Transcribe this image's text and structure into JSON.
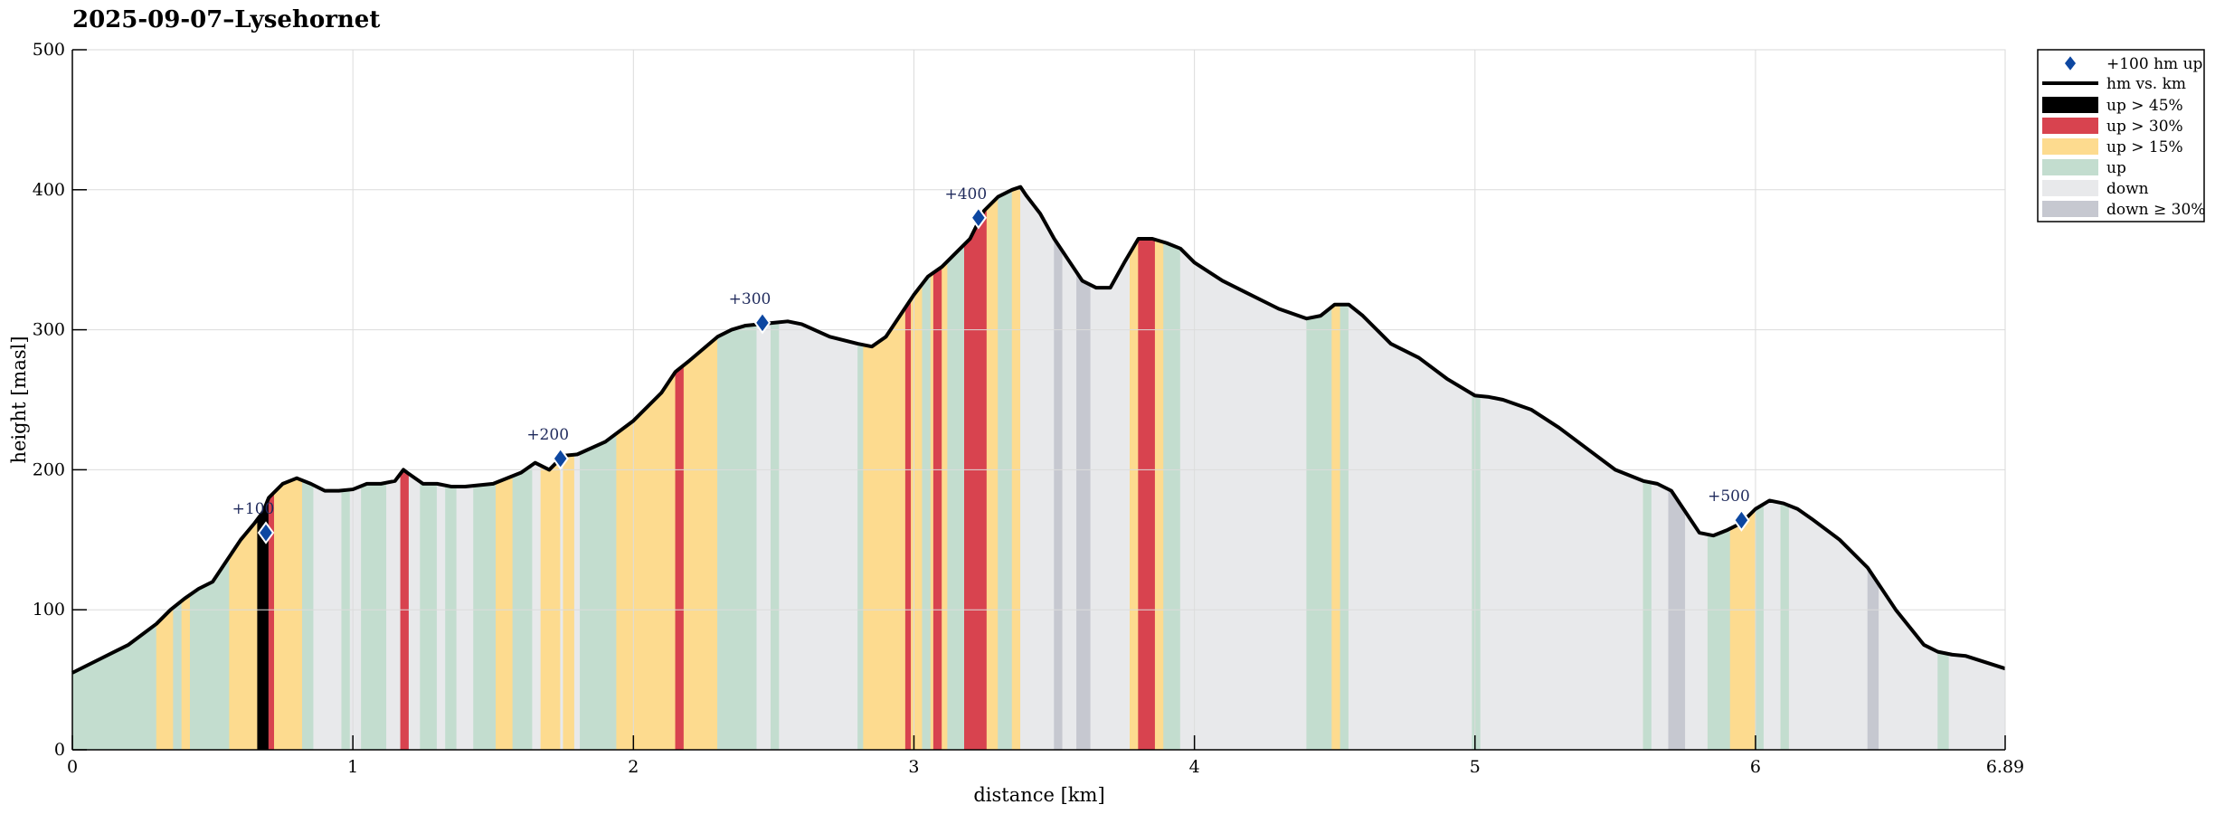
{
  "chart_data": {
    "type": "area",
    "title": "2025-09-07–Lysehornet",
    "xlabel": "distance [km]",
    "ylabel": "height [masl]",
    "xlim": [
      0,
      6.89
    ],
    "ylim": [
      0,
      500
    ],
    "xticks": [
      0,
      1,
      2,
      3,
      4,
      5,
      6,
      6.89
    ],
    "xtick_labels": [
      "0",
      "1",
      "2",
      "3",
      "4",
      "5",
      "6",
      "6.89"
    ],
    "yticks": [
      0,
      100,
      200,
      300,
      400,
      500
    ],
    "ytick_labels": [
      "0",
      "100",
      "200",
      "300",
      "400",
      "500"
    ],
    "grid": true,
    "legend_position": "outside-top-right",
    "series": [
      {
        "name": "hm vs. km",
        "x": [
          0,
          0.1,
          0.2,
          0.3,
          0.35,
          0.4,
          0.45,
          0.5,
          0.55,
          0.6,
          0.65,
          0.68,
          0.7,
          0.75,
          0.8,
          0.85,
          0.9,
          0.95,
          1.0,
          1.05,
          1.1,
          1.15,
          1.18,
          1.2,
          1.25,
          1.3,
          1.35,
          1.4,
          1.5,
          1.6,
          1.65,
          1.7,
          1.75,
          1.8,
          1.9,
          2.0,
          2.1,
          2.15,
          2.2,
          2.3,
          2.35,
          2.4,
          2.5,
          2.55,
          2.6,
          2.7,
          2.8,
          2.85,
          2.9,
          3.0,
          3.05,
          3.1,
          3.15,
          3.2,
          3.25,
          3.3,
          3.35,
          3.38,
          3.4,
          3.45,
          3.5,
          3.55,
          3.6,
          3.65,
          3.7,
          3.75,
          3.8,
          3.85,
          3.9,
          3.95,
          4.0,
          4.1,
          4.2,
          4.3,
          4.4,
          4.45,
          4.5,
          4.55,
          4.6,
          4.7,
          4.8,
          4.9,
          5.0,
          5.05,
          5.1,
          5.2,
          5.3,
          5.4,
          5.5,
          5.6,
          5.65,
          5.7,
          5.75,
          5.8,
          5.85,
          5.9,
          5.95,
          6.0,
          6.05,
          6.1,
          6.15,
          6.2,
          6.3,
          6.4,
          6.5,
          6.6,
          6.65,
          6.7,
          6.75,
          6.89
        ],
        "y": [
          55,
          65,
          75,
          90,
          100,
          108,
          115,
          120,
          135,
          150,
          162,
          170,
          180,
          190,
          194,
          190,
          185,
          185,
          186,
          190,
          190,
          192,
          200,
          197,
          190,
          190,
          188,
          188,
          190,
          198,
          205,
          200,
          210,
          211,
          220,
          235,
          255,
          270,
          278,
          295,
          300,
          303,
          305,
          306,
          304,
          295,
          290,
          288,
          295,
          325,
          338,
          345,
          355,
          365,
          385,
          395,
          400,
          402,
          396,
          383,
          365,
          350,
          335,
          330,
          330,
          348,
          365,
          365,
          362,
          358,
          348,
          335,
          325,
          315,
          308,
          310,
          318,
          318,
          310,
          290,
          280,
          265,
          253,
          252,
          250,
          243,
          230,
          215,
          200,
          192,
          190,
          185,
          170,
          155,
          153,
          157,
          162,
          172,
          178,
          176,
          172,
          165,
          150,
          130,
          100,
          75,
          70,
          68,
          67,
          58
        ]
      },
      {
        "name": "+100 hm up",
        "x": [
          0.69,
          1.74,
          2.46,
          3.23,
          5.95
        ],
        "y": [
          155,
          208,
          305,
          380,
          164
        ],
        "labels": [
          "+100",
          "+200",
          "+300",
          "+400",
          "+500"
        ]
      }
    ],
    "gradient_classes": [
      {
        "key": "up45",
        "name": "up > 45%",
        "color": "#000000"
      },
      {
        "key": "up30",
        "name": "up > 30%",
        "color": "#d8434f"
      },
      {
        "key": "up15",
        "name": "up > 15%",
        "color": "#fddb8f"
      },
      {
        "key": "up",
        "name": "up",
        "color": "#c3ddcf"
      },
      {
        "key": "down",
        "name": "down",
        "color": "#e8e9eb"
      },
      {
        "key": "down30",
        "name": "down ≥ 30%",
        "color": "#c6c8d0"
      }
    ],
    "bands": [
      [
        0,
        0.3,
        "up"
      ],
      [
        0.3,
        0.36,
        "up15"
      ],
      [
        0.36,
        0.39,
        "up"
      ],
      [
        0.39,
        0.42,
        "up15"
      ],
      [
        0.42,
        0.56,
        "up"
      ],
      [
        0.56,
        0.66,
        "up15"
      ],
      [
        0.66,
        0.7,
        "up45"
      ],
      [
        0.7,
        0.72,
        "up30"
      ],
      [
        0.72,
        0.82,
        "up15"
      ],
      [
        0.82,
        0.86,
        "up"
      ],
      [
        0.86,
        0.96,
        "down"
      ],
      [
        0.96,
        0.99,
        "up"
      ],
      [
        0.99,
        1.03,
        "down"
      ],
      [
        1.03,
        1.12,
        "up"
      ],
      [
        1.12,
        1.17,
        "down"
      ],
      [
        1.17,
        1.2,
        "up30"
      ],
      [
        1.2,
        1.24,
        "down"
      ],
      [
        1.24,
        1.3,
        "up"
      ],
      [
        1.3,
        1.33,
        "down"
      ],
      [
        1.33,
        1.37,
        "up"
      ],
      [
        1.37,
        1.43,
        "down"
      ],
      [
        1.43,
        1.51,
        "up"
      ],
      [
        1.51,
        1.57,
        "up15"
      ],
      [
        1.57,
        1.64,
        "up"
      ],
      [
        1.64,
        1.67,
        "down"
      ],
      [
        1.67,
        1.74,
        "up15"
      ],
      [
        1.74,
        1.75,
        "down"
      ],
      [
        1.75,
        1.79,
        "up15"
      ],
      [
        1.79,
        1.81,
        "down"
      ],
      [
        1.81,
        1.94,
        "up"
      ],
      [
        1.94,
        2.15,
        "up15"
      ],
      [
        2.15,
        2.18,
        "up30"
      ],
      [
        2.18,
        2.3,
        "up15"
      ],
      [
        2.3,
        2.44,
        "up"
      ],
      [
        2.44,
        2.49,
        "down"
      ],
      [
        2.49,
        2.52,
        "up"
      ],
      [
        2.52,
        2.8,
        "down"
      ],
      [
        2.8,
        2.82,
        "up"
      ],
      [
        2.82,
        2.97,
        "up15"
      ],
      [
        2.97,
        2.99,
        "up30"
      ],
      [
        2.99,
        3.03,
        "up15"
      ],
      [
        3.03,
        3.06,
        "up"
      ],
      [
        3.06,
        3.07,
        "up15"
      ],
      [
        3.07,
        3.1,
        "up30"
      ],
      [
        3.1,
        3.12,
        "up15"
      ],
      [
        3.12,
        3.18,
        "up"
      ],
      [
        3.18,
        3.26,
        "up30"
      ],
      [
        3.26,
        3.3,
        "up15"
      ],
      [
        3.3,
        3.35,
        "up"
      ],
      [
        3.35,
        3.38,
        "up15"
      ],
      [
        3.38,
        3.5,
        "down"
      ],
      [
        3.5,
        3.53,
        "down30"
      ],
      [
        3.53,
        3.58,
        "down"
      ],
      [
        3.58,
        3.63,
        "down30"
      ],
      [
        3.63,
        3.77,
        "down"
      ],
      [
        3.77,
        3.8,
        "up15"
      ],
      [
        3.8,
        3.86,
        "up30"
      ],
      [
        3.86,
        3.89,
        "up15"
      ],
      [
        3.89,
        3.95,
        "up"
      ],
      [
        3.95,
        4.4,
        "down"
      ],
      [
        4.4,
        4.49,
        "up"
      ],
      [
        4.49,
        4.52,
        "up15"
      ],
      [
        4.52,
        4.55,
        "up"
      ],
      [
        4.55,
        4.99,
        "down"
      ],
      [
        4.99,
        5.02,
        "up"
      ],
      [
        5.02,
        5.6,
        "down"
      ],
      [
        5.6,
        5.63,
        "up"
      ],
      [
        5.63,
        5.69,
        "down"
      ],
      [
        5.69,
        5.75,
        "down30"
      ],
      [
        5.75,
        5.83,
        "down"
      ],
      [
        5.83,
        5.91,
        "up"
      ],
      [
        5.91,
        6.0,
        "up15"
      ],
      [
        6.0,
        6.03,
        "up"
      ],
      [
        6.03,
        6.09,
        "down"
      ],
      [
        6.09,
        6.12,
        "up"
      ],
      [
        6.12,
        6.4,
        "down"
      ],
      [
        6.4,
        6.44,
        "down30"
      ],
      [
        6.44,
        6.65,
        "down"
      ],
      [
        6.65,
        6.69,
        "up"
      ],
      [
        6.69,
        6.89,
        "down"
      ]
    ],
    "colors": {
      "line": "#000000",
      "marker": "#0d47a1",
      "marker_label": "#1f2a5c",
      "grid": "#dcdcdc"
    }
  }
}
